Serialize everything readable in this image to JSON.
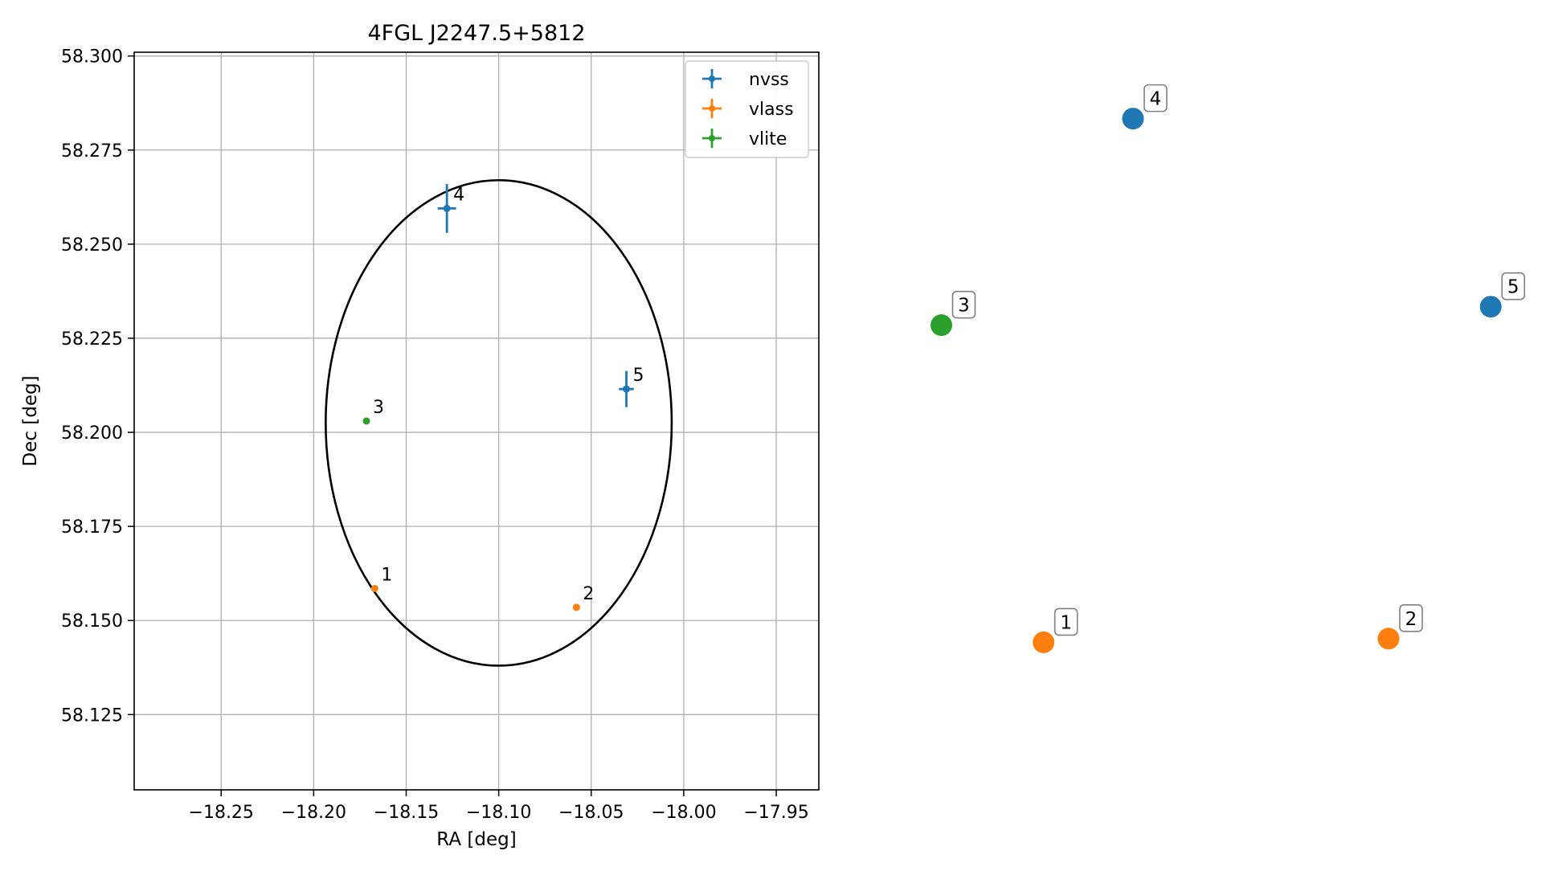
{
  "chart_data": [
    {
      "type": "scatter",
      "title": "4FGL J2247.5+5812",
      "xlabel": "RA [deg]",
      "ylabel": "Dec [deg]",
      "xlim": [
        -18.297,
        -17.927
      ],
      "ylim": [
        58.105,
        58.301
      ],
      "x_ticks": [
        -18.25,
        -18.2,
        -18.15,
        -18.1,
        -18.05,
        -18.0,
        -17.95
      ],
      "x_tick_labels": [
        "−18.25",
        "−18.20",
        "−18.15",
        "−18.10",
        "−18.05",
        "−18.00",
        "−17.95"
      ],
      "y_ticks": [
        58.125,
        58.15,
        58.175,
        58.2,
        58.225,
        58.25,
        58.275,
        58.3
      ],
      "y_tick_labels": [
        "58.125",
        "58.150",
        "58.175",
        "58.200",
        "58.225",
        "58.250",
        "58.275",
        "58.300"
      ],
      "grid": true,
      "legend_position": "top-right",
      "series": [
        {
          "name": "nvss",
          "color": "#1f77b4",
          "points": [
            {
              "label": "4",
              "x": -18.128,
              "y": 58.2595,
              "xerr": 0.005,
              "yerr": 0.0065
            },
            {
              "label": "5",
              "x": -18.031,
              "y": 58.2115,
              "xerr": 0.004,
              "yerr": 0.0048
            }
          ]
        },
        {
          "name": "vlass",
          "color": "#ff7f0e",
          "points": [
            {
              "label": "1",
              "x": -18.167,
              "y": 58.1585,
              "xerr": 0,
              "yerr": 0
            },
            {
              "label": "2",
              "x": -18.058,
              "y": 58.1535,
              "xerr": 0,
              "yerr": 0
            }
          ]
        },
        {
          "name": "vlite",
          "color": "#2ca02c",
          "points": [
            {
              "label": "3",
              "x": -18.1715,
              "y": 58.203,
              "xerr": 0,
              "yerr": 0
            }
          ]
        }
      ],
      "ellipse": {
        "cx": -18.1,
        "cy": 58.2025,
        "rx": 0.0935,
        "ry": 0.0645,
        "color": "#000000"
      }
    },
    {
      "type": "scatter",
      "title": "",
      "axes_visible": false,
      "xlim": [
        0,
        10
      ],
      "ylim": [
        0,
        10
      ],
      "points": [
        {
          "label": "1",
          "x": 2.6,
          "y": 2.0,
          "color": "#ff7f0e"
        },
        {
          "label": "2",
          "x": 8.0,
          "y": 2.05,
          "color": "#ff7f0e"
        },
        {
          "label": "3",
          "x": 1.0,
          "y": 6.3,
          "color": "#2ca02c"
        },
        {
          "label": "4",
          "x": 4.0,
          "y": 9.1,
          "color": "#1f77b4"
        },
        {
          "label": "5",
          "x": 9.6,
          "y": 6.55,
          "color": "#1f77b4"
        }
      ]
    }
  ]
}
